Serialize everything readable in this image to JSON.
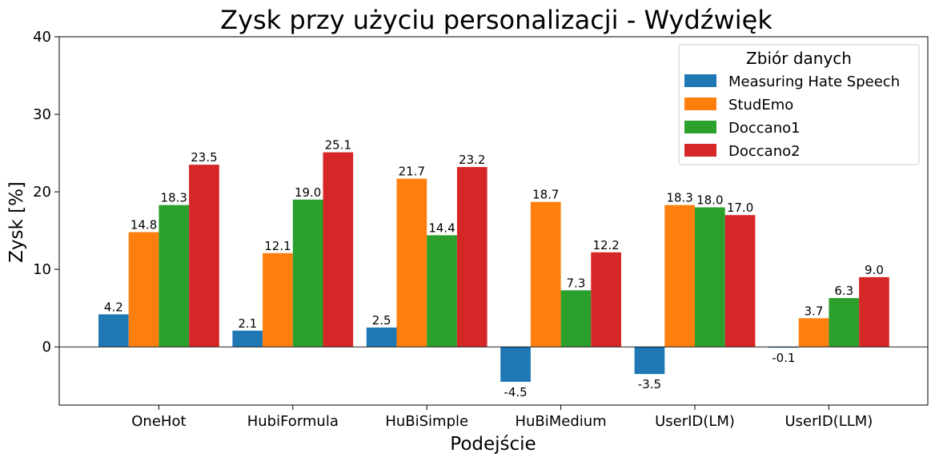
{
  "chart_data": {
    "type": "bar",
    "title": "Zysk przy użyciu personalizacji - Wydźwięk",
    "xlabel": "Podejście",
    "ylabel": "Zysk [%]",
    "ylim": [
      -7.5,
      40
    ],
    "yticks": [
      0,
      10,
      20,
      30,
      40
    ],
    "categories": [
      "OneHot",
      "HubiFormula",
      "HuBiSimple",
      "HuBiMedium",
      "UserID(LM)",
      "UserID(LLM)"
    ],
    "series": [
      {
        "name": "Measuring Hate Speech",
        "color": "#1f77b4",
        "values": [
          4.2,
          2.1,
          2.5,
          -4.5,
          -3.5,
          -0.1
        ],
        "labels": [
          "4.2",
          "2.1",
          "2.5",
          "-4.5",
          "-3.5",
          "-0.1"
        ]
      },
      {
        "name": "StudEmo",
        "color": "#ff7f0e",
        "values": [
          14.8,
          12.1,
          21.7,
          18.7,
          18.3,
          3.7
        ],
        "labels": [
          "14.8",
          "12.1",
          "21.7",
          "18.7",
          "18.3",
          "3.7"
        ]
      },
      {
        "name": "Doccano1",
        "color": "#2ca02c",
        "values": [
          18.3,
          19.0,
          14.4,
          7.3,
          18.0,
          6.3
        ],
        "labels": [
          "18.3",
          "19.0",
          "14.4",
          "7.3",
          "18.0",
          "6.3"
        ]
      },
      {
        "name": "Doccano2",
        "color": "#d62728",
        "values": [
          23.5,
          25.1,
          23.2,
          12.2,
          17.0,
          9.0
        ],
        "labels": [
          "23.5",
          "25.1",
          "23.2",
          "12.2",
          "17.0",
          "9.0"
        ]
      }
    ],
    "legend": {
      "title": "Zbiór danych",
      "position": "top-right"
    },
    "grid": false,
    "zero_line": true
  }
}
